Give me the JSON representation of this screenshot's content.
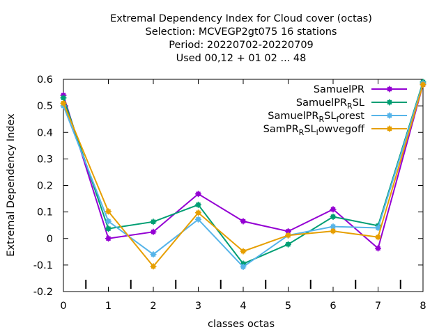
{
  "chart_data": {
    "type": "line",
    "title_lines": [
      "Extremal Dependency Index  for Cloud cover (octas)",
      "Selection: MCVEGP2gt075     16 stations",
      "Period: 20220702-20220709",
      "Used  00,12  + 01 02 ... 48"
    ],
    "xlabel": "classes octas",
    "ylabel": "Extremal Dependency Index",
    "xlim": [
      0,
      8
    ],
    "ylim": [
      -0.2,
      0.6
    ],
    "x_ticks": [
      0,
      1,
      2,
      3,
      4,
      5,
      6,
      7,
      8
    ],
    "y_ticks": [
      0.6,
      0.5,
      0.4,
      0.3,
      0.2,
      0.1,
      0,
      -0.1,
      -0.2
    ],
    "y_tick_labels": [
      "0.6",
      "0.5",
      "0.4",
      "0.3",
      "0.2",
      "0.1",
      "0",
      "-0.1",
      "-0.2"
    ],
    "minor_marks_x": [
      0.5,
      1.5,
      2.5,
      3.5,
      4.5,
      5.5,
      6.5,
      7.5
    ],
    "grid": false,
    "legend_position": "top-right",
    "x": [
      0,
      1,
      2,
      3,
      4,
      5,
      6,
      7,
      8
    ],
    "series": [
      {
        "name": "SamuelPR",
        "label_parts": [
          [
            "SamuelPR",
            ""
          ]
        ],
        "color": "#9400d3",
        "values": [
          0.54,
          0.0,
          0.025,
          0.168,
          0.065,
          0.027,
          0.11,
          -0.037,
          0.58
        ]
      },
      {
        "name": "SamuelPR_RSL",
        "label_parts": [
          [
            "SamuelPR",
            ""
          ],
          [
            "R",
            "sub"
          ],
          [
            "SL",
            ""
          ]
        ],
        "color": "#009e73",
        "values": [
          0.53,
          0.037,
          0.063,
          0.127,
          -0.095,
          -0.022,
          0.082,
          0.048,
          0.59
        ]
      },
      {
        "name": "SamuelPR_RSL_forest",
        "label_parts": [
          [
            "SamuelPR",
            ""
          ],
          [
            "R",
            "sub"
          ],
          [
            "SL",
            ""
          ],
          [
            "f",
            "sub"
          ],
          [
            "orest",
            ""
          ]
        ],
        "color": "#56b4e9",
        "values": [
          0.5,
          0.065,
          -0.06,
          0.072,
          -0.107,
          0.012,
          0.045,
          0.04,
          0.585
        ]
      },
      {
        "name": "SamPR_RSL_lowvegoff",
        "label_parts": [
          [
            "SamPR",
            ""
          ],
          [
            "R",
            "sub"
          ],
          [
            "SL",
            ""
          ],
          [
            "l",
            "sub"
          ],
          [
            "owvegoff",
            ""
          ]
        ],
        "color": "#e69f00",
        "values": [
          0.51,
          0.102,
          -0.105,
          0.097,
          -0.048,
          0.012,
          0.028,
          0.005,
          0.58
        ]
      }
    ]
  }
}
